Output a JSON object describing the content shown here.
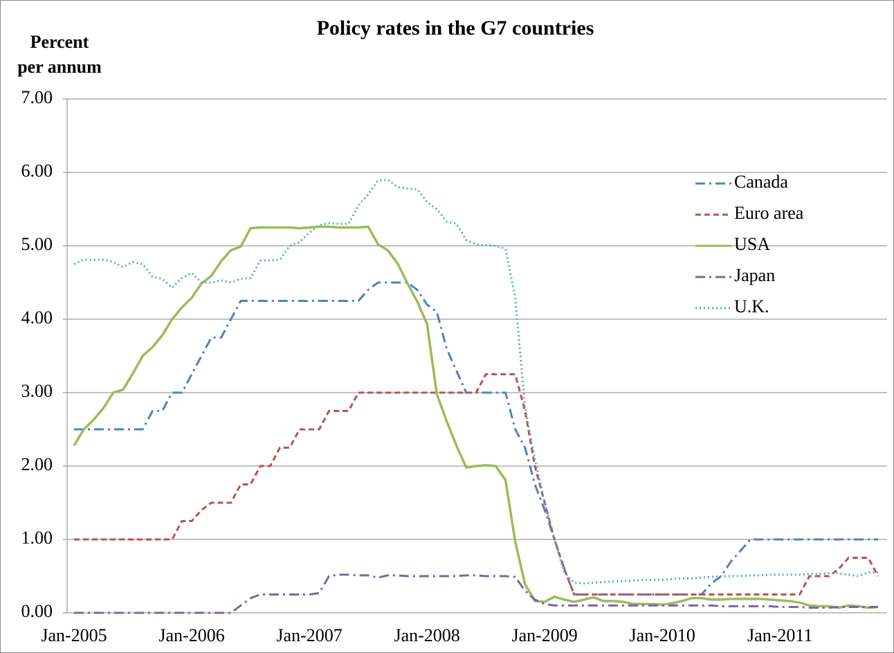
{
  "chart_data": {
    "type": "line",
    "title": "Policy rates in the G7 countries",
    "y_label": [
      "Percent",
      "per annum"
    ],
    "categories": [
      "Jan-2005",
      null,
      null,
      null,
      null,
      null,
      null,
      null,
      null,
      null,
      null,
      null,
      "Jan-2006",
      null,
      null,
      null,
      null,
      null,
      null,
      null,
      null,
      null,
      null,
      null,
      "Jan-2007",
      null,
      null,
      null,
      null,
      null,
      null,
      null,
      null,
      null,
      null,
      null,
      "Jan-2008",
      null,
      null,
      null,
      null,
      null,
      null,
      null,
      null,
      null,
      null,
      null,
      "Jan-2009",
      null,
      null,
      null,
      null,
      null,
      null,
      null,
      null,
      null,
      null,
      null,
      "Jan-2010",
      null,
      null,
      null,
      null,
      null,
      null,
      null,
      null,
      null,
      null,
      null,
      "Jan-2011",
      null,
      null,
      null,
      null,
      null,
      null,
      null,
      null,
      null,
      null
    ],
    "ylim": [
      0,
      7
    ],
    "yticks": [
      {
        "value": 0,
        "label": "0.00"
      },
      {
        "value": 1,
        "label": "1.00"
      },
      {
        "value": 2,
        "label": "2.00"
      },
      {
        "value": 3,
        "label": "3.00"
      },
      {
        "value": 4,
        "label": "4.00"
      },
      {
        "value": 5,
        "label": "5.00"
      },
      {
        "value": 6,
        "label": "6.00"
      },
      {
        "value": 7,
        "label": "7.00"
      }
    ],
    "grid": true,
    "legend": "upper right",
    "series": [
      {
        "name": "Canada",
        "color": "#4f81bd",
        "dash": "dashdot",
        "values": [
          2.5,
          2.5,
          2.5,
          2.5,
          2.5,
          2.5,
          2.5,
          2.5,
          2.75,
          2.75,
          3.0,
          3.0,
          3.25,
          3.5,
          3.75,
          3.75,
          4.0,
          4.25,
          4.25,
          4.25,
          4.25,
          4.25,
          4.25,
          4.25,
          4.25,
          4.25,
          4.25,
          4.25,
          4.25,
          4.25,
          4.4,
          4.5,
          4.5,
          4.5,
          4.5,
          4.4,
          4.2,
          4.1,
          3.6,
          3.3,
          3.0,
          3.0,
          3.0,
          3.0,
          3.0,
          2.5,
          2.25,
          1.75,
          1.4,
          1.0,
          0.6,
          0.25,
          0.25,
          0.25,
          0.25,
          0.25,
          0.25,
          0.25,
          0.25,
          0.25,
          0.25,
          0.25,
          0.25,
          0.25,
          0.25,
          0.4,
          0.5,
          0.7,
          0.85,
          1.0,
          1.0,
          1.0,
          1.0,
          1.0,
          1.0,
          1.0,
          1.0,
          1.0,
          1.0,
          1.0,
          1.0,
          1.0,
          1.0
        ]
      },
      {
        "name": "Euro area",
        "color": "#c0504d",
        "dash": "dash",
        "values": [
          1.0,
          1.0,
          1.0,
          1.0,
          1.0,
          1.0,
          1.0,
          1.0,
          1.0,
          1.0,
          1.0,
          1.25,
          1.25,
          1.4,
          1.5,
          1.5,
          1.5,
          1.75,
          1.75,
          2.0,
          2.0,
          2.25,
          2.25,
          2.5,
          2.5,
          2.5,
          2.75,
          2.75,
          2.75,
          3.0,
          3.0,
          3.0,
          3.0,
          3.0,
          3.0,
          3.0,
          3.0,
          3.0,
          3.0,
          3.0,
          3.0,
          3.0,
          3.25,
          3.25,
          3.25,
          3.25,
          2.75,
          2.0,
          1.5,
          1.0,
          0.6,
          0.25,
          0.25,
          0.25,
          0.25,
          0.25,
          0.25,
          0.25,
          0.25,
          0.25,
          0.25,
          0.25,
          0.25,
          0.25,
          0.25,
          0.25,
          0.25,
          0.25,
          0.25,
          0.25,
          0.25,
          0.25,
          0.25,
          0.25,
          0.25,
          0.5,
          0.5,
          0.5,
          0.6,
          0.75,
          0.75,
          0.75,
          0.5
        ]
      },
      {
        "name": "USA",
        "color": "#9bbb59",
        "dash": "solid",
        "values": [
          2.28,
          2.5,
          2.63,
          2.79,
          3.0,
          3.04,
          3.26,
          3.5,
          3.62,
          3.78,
          4.0,
          4.16,
          4.29,
          4.49,
          4.59,
          4.79,
          4.94,
          4.99,
          5.24,
          5.25,
          5.25,
          5.25,
          5.25,
          5.24,
          5.25,
          5.26,
          5.26,
          5.25,
          5.25,
          5.25,
          5.26,
          5.02,
          4.94,
          4.76,
          4.49,
          4.24,
          3.94,
          2.98,
          2.61,
          2.28,
          1.98,
          2.0,
          2.01,
          2.0,
          1.81,
          0.97,
          0.39,
          0.16,
          0.15,
          0.22,
          0.18,
          0.15,
          0.18,
          0.21,
          0.16,
          0.16,
          0.15,
          0.12,
          0.12,
          0.12,
          0.11,
          0.13,
          0.16,
          0.2,
          0.2,
          0.18,
          0.18,
          0.19,
          0.19,
          0.19,
          0.19,
          0.18,
          0.17,
          0.16,
          0.14,
          0.1,
          0.09,
          0.09,
          0.07,
          0.1,
          0.09,
          0.07,
          0.08
        ]
      },
      {
        "name": "Japan",
        "color": "#8064a2",
        "dash": "dashdot",
        "values": [
          0,
          0,
          0,
          0,
          0,
          0,
          0,
          0,
          0,
          0,
          0,
          0,
          0,
          0,
          0,
          0,
          0,
          0.1,
          0.2,
          0.25,
          0.25,
          0.25,
          0.25,
          0.25,
          0.25,
          0.27,
          0.5,
          0.52,
          0.52,
          0.51,
          0.51,
          0.48,
          0.51,
          0.51,
          0.5,
          0.5,
          0.5,
          0.5,
          0.5,
          0.5,
          0.51,
          0.51,
          0.5,
          0.5,
          0.5,
          0.49,
          0.3,
          0.18,
          0.12,
          0.1,
          0.1,
          0.1,
          0.1,
          0.1,
          0.1,
          0.1,
          0.1,
          0.1,
          0.1,
          0.1,
          0.1,
          0.1,
          0.1,
          0.1,
          0.1,
          0.1,
          0.09,
          0.09,
          0.09,
          0.09,
          0.09,
          0.09,
          0.08,
          0.08,
          0.08,
          0.07,
          0.07,
          0.07,
          0.08,
          0.08,
          0.08,
          0.08,
          0.08
        ]
      },
      {
        "name": "U.K.",
        "color": "#4bacc6",
        "dash": "dot",
        "values": [
          4.75,
          4.81,
          4.81,
          4.81,
          4.78,
          4.71,
          4.78,
          4.75,
          4.58,
          4.55,
          4.43,
          4.56,
          4.63,
          4.5,
          4.5,
          4.53,
          4.5,
          4.55,
          4.56,
          4.8,
          4.8,
          4.81,
          5.0,
          5.05,
          5.18,
          5.28,
          5.31,
          5.3,
          5.3,
          5.55,
          5.7,
          5.89,
          5.9,
          5.8,
          5.78,
          5.77,
          5.6,
          5.5,
          5.33,
          5.3,
          5.08,
          5.02,
          5.01,
          5.0,
          4.96,
          4.3,
          2.8,
          2.1,
          1.5,
          1.0,
          0.55,
          0.41,
          0.4,
          0.41,
          0.42,
          0.43,
          0.43,
          0.44,
          0.45,
          0.45,
          0.45,
          0.46,
          0.47,
          0.47,
          0.48,
          0.49,
          0.5,
          0.5,
          0.5,
          0.51,
          0.51,
          0.52,
          0.52,
          0.52,
          0.52,
          0.53,
          0.53,
          0.54,
          0.54,
          0.52,
          0.5,
          0.55,
          0.55
        ]
      }
    ]
  }
}
